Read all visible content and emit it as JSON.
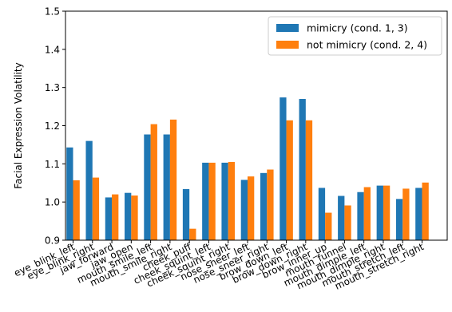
{
  "chart_data": {
    "type": "bar",
    "ylabel": "Facial Expression Volatility",
    "xlabel": "",
    "ylim": [
      0.9,
      1.5
    ],
    "yticks": [
      "0.9",
      "1.0",
      "1.1",
      "1.2",
      "1.3",
      "1.4",
      "1.5"
    ],
    "grid": false,
    "legend_position": "top-right",
    "categories": [
      "eye_blink_left",
      "eye_blink_right",
      "jaw_forward",
      "jaw_open",
      "mouth_smile_left",
      "mouth_smile_right",
      "cheek_puff",
      "cheek_squint_left",
      "cheek_squint_right",
      "nose_sneer_left",
      "nose_sneer_right",
      "brow_down_left",
      "brow_down_right",
      "brow_inner_up",
      "mouth_funnel",
      "mouth_dimple_left",
      "mouth_dimple_right",
      "mouth_stretch_left",
      "mouth_stretch_right"
    ],
    "series": [
      {
        "name": "mimicry (cond. 1, 3)",
        "color": "#1f77b4",
        "values": [
          1.143,
          1.16,
          1.012,
          1.024,
          1.177,
          1.177,
          1.034,
          1.103,
          1.103,
          1.058,
          1.076,
          1.274,
          1.27,
          1.037,
          1.016,
          1.026,
          1.043,
          1.008,
          1.037
        ]
      },
      {
        "name": "not mimicry (cond. 2, 4)",
        "color": "#ff7f0e",
        "values": [
          1.057,
          1.064,
          1.02,
          1.017,
          1.204,
          1.216,
          0.93,
          1.103,
          1.105,
          1.067,
          1.085,
          1.214,
          1.214,
          0.972,
          0.991,
          1.039,
          1.043,
          1.035,
          1.051
        ]
      }
    ]
  }
}
